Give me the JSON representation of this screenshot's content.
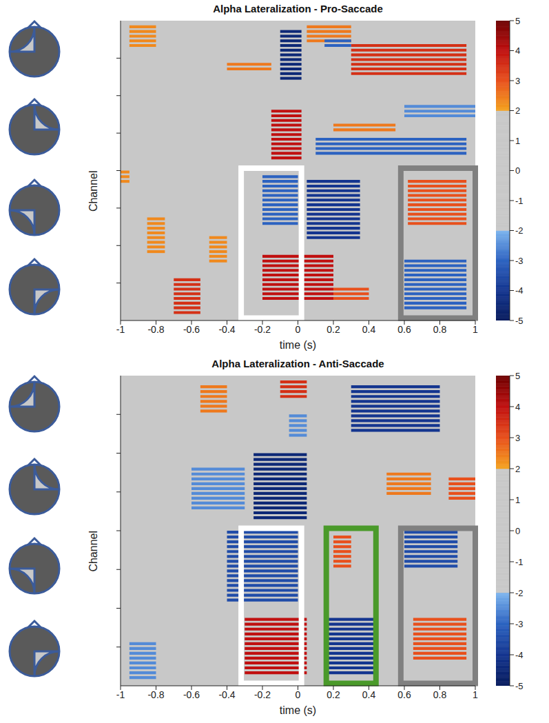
{
  "chart_data": [
    {
      "type": "heatmap",
      "title": "Alpha Lateralization - Pro-Saccade",
      "x_label": "time (s)",
      "y_label": "Channel",
      "xlim": [
        -1,
        1
      ],
      "xticks": [
        -1,
        -0.8,
        -0.6,
        -0.4,
        -0.2,
        0,
        0.2,
        0.4,
        0.6,
        0.8,
        1
      ],
      "ylim": [
        0,
        64
      ],
      "yticks": [
        8,
        16,
        24,
        32,
        40,
        48,
        56
      ],
      "tick_labels": "x",
      "cells": [
        {
          "channels": [
            2,
            13
          ],
          "time": [
            -0.1,
            0.02
          ],
          "value": -4.5
        },
        {
          "channels": [
            5,
            12
          ],
          "time": [
            0.3,
            0.95
          ],
          "value": 3.5
        },
        {
          "channels": [
            1,
            5
          ],
          "time": [
            0.05,
            0.3
          ],
          "value": 2.5
        },
        {
          "channels": [
            1,
            6
          ],
          "time": [
            -0.95,
            -0.8
          ],
          "value": 2.3
        },
        {
          "channels": [
            9,
            11
          ],
          "time": [
            -0.4,
            -0.15
          ],
          "value": 2.5
        },
        {
          "channels": [
            4,
            6
          ],
          "time": [
            0.15,
            0.3
          ],
          "value": -3
        },
        {
          "channels": [
            19,
            30
          ],
          "time": [
            -0.15,
            0.02
          ],
          "value": 4
        },
        {
          "channels": [
            25,
            29
          ],
          "time": [
            0.1,
            0.95
          ],
          "value": -3
        },
        {
          "channels": [
            22,
            24
          ],
          "time": [
            0.2,
            0.55
          ],
          "value": 2.5
        },
        {
          "channels": [
            18,
            21
          ],
          "time": [
            0.6,
            1
          ],
          "value": -2.5
        },
        {
          "channels": [
            32,
            35
          ],
          "time": [
            -1,
            -0.95
          ],
          "value": 2.3
        },
        {
          "channels": [
            33,
            44
          ],
          "time": [
            -0.2,
            0
          ],
          "value": -3
        },
        {
          "channels": [
            34,
            47
          ],
          "time": [
            0.05,
            0.35
          ],
          "value": -4
        },
        {
          "channels": [
            50,
            60
          ],
          "time": [
            -0.2,
            0.2
          ],
          "value": 4
        },
        {
          "channels": [
            57,
            60
          ],
          "time": [
            0.2,
            0.4
          ],
          "value": 3
        },
        {
          "channels": [
            42,
            50
          ],
          "time": [
            -0.85,
            -0.75
          ],
          "value": 2.3
        },
        {
          "channels": [
            46,
            52
          ],
          "time": [
            -0.5,
            -0.4
          ],
          "value": 2.3
        },
        {
          "channels": [
            55,
            63
          ],
          "time": [
            -0.7,
            -0.55
          ],
          "value": 3.5
        },
        {
          "channels": [
            34,
            44
          ],
          "time": [
            0.62,
            0.95
          ],
          "value": 3
        },
        {
          "channels": [
            51,
            62
          ],
          "time": [
            0.6,
            0.95
          ],
          "value": -3
        }
      ],
      "boxes": [
        {
          "time": [
            -0.32,
            0.02
          ],
          "channels": [
            31.5,
            63.5
          ],
          "color": "#ffffff"
        },
        {
          "time": [
            0.58,
            1
          ],
          "channels": [
            31.5,
            63.5
          ],
          "color": "#808080"
        }
      ],
      "colorbar": {
        "range": [
          -5,
          5
        ],
        "ticks": [
          -5,
          -4,
          -3,
          -2,
          -1,
          0,
          1,
          2,
          3,
          4,
          5
        ],
        "colormap": [
          [
            -5,
            "#061a5c"
          ],
          [
            -4,
            "#14358f"
          ],
          [
            -3,
            "#2c62c0"
          ],
          [
            -2,
            "#7cb4ee"
          ],
          [
            -2,
            "#c8c8c8"
          ],
          [
            2,
            "#c8c8c8"
          ],
          [
            2,
            "#f4a21e"
          ],
          [
            3,
            "#e8501c"
          ],
          [
            4,
            "#c01010"
          ],
          [
            5,
            "#6e0000"
          ]
        ]
      }
    },
    {
      "type": "heatmap",
      "title": "Alpha Lateralization - Anti-Saccade",
      "x_label": "time (s)",
      "y_label": "Channel",
      "xlim": [
        -1,
        1
      ],
      "xticks": [
        -1,
        -0.8,
        -0.6,
        -0.4,
        -0.2,
        0,
        0.2,
        0.4,
        0.6,
        0.8,
        1
      ],
      "ylim": [
        0,
        64
      ],
      "yticks": [
        8,
        16,
        24,
        32,
        40,
        48,
        56
      ],
      "tick_labels": "x",
      "cells": [
        {
          "channels": [
            1,
            5
          ],
          "time": [
            -0.1,
            0.05
          ],
          "value": 3.5
        },
        {
          "channels": [
            2,
            8
          ],
          "time": [
            -0.55,
            -0.4
          ],
          "value": 2.5
        },
        {
          "channels": [
            2,
            12
          ],
          "time": [
            0.3,
            0.8
          ],
          "value": -4
        },
        {
          "channels": [
            8,
            13
          ],
          "time": [
            -0.05,
            0.05
          ],
          "value": -2.5
        },
        {
          "channels": [
            16,
            30
          ],
          "time": [
            -0.25,
            0.05
          ],
          "value": -4.5
        },
        {
          "channels": [
            19,
            28
          ],
          "time": [
            -0.6,
            -0.3
          ],
          "value": -2.5
        },
        {
          "channels": [
            20,
            25
          ],
          "time": [
            0.5,
            0.75
          ],
          "value": 2.5
        },
        {
          "channels": [
            21,
            26
          ],
          "time": [
            0.85,
            1
          ],
          "value": 3
        },
        {
          "channels": [
            32,
            47
          ],
          "time": [
            -0.4,
            0
          ],
          "value": -3.5
        },
        {
          "channels": [
            32,
            40
          ],
          "time": [
            0.6,
            0.9
          ],
          "value": -3.5
        },
        {
          "channels": [
            33,
            40
          ],
          "time": [
            0.2,
            0.3
          ],
          "value": 3
        },
        {
          "channels": [
            50,
            62
          ],
          "time": [
            -0.3,
            0.05
          ],
          "value": 4
        },
        {
          "channels": [
            50,
            62
          ],
          "time": [
            0.15,
            0.45
          ],
          "value": -4
        },
        {
          "channels": [
            50,
            59
          ],
          "time": [
            0.65,
            0.95
          ],
          "value": 3
        },
        {
          "channels": [
            55,
            63
          ],
          "time": [
            -0.95,
            -0.8
          ],
          "value": -2.5
        }
      ],
      "boxes": [
        {
          "time": [
            -0.32,
            0.02
          ],
          "channels": [
            31.5,
            63.5
          ],
          "color": "#ffffff"
        },
        {
          "time": [
            0.16,
            0.44
          ],
          "channels": [
            31.5,
            63.5
          ],
          "color": "#4a9a2a"
        },
        {
          "time": [
            0.58,
            1
          ],
          "channels": [
            31.5,
            63.5
          ],
          "color": "#808080"
        }
      ],
      "colorbar": {
        "range": [
          -5,
          5
        ],
        "ticks": [
          -5,
          -4,
          -3,
          -2,
          -1,
          0,
          1,
          2,
          3,
          4,
          5
        ],
        "colormap": [
          [
            -5,
            "#061a5c"
          ],
          [
            -4,
            "#14358f"
          ],
          [
            -3,
            "#2c62c0"
          ],
          [
            -2,
            "#7cb4ee"
          ],
          [
            -2,
            "#c8c8c8"
          ],
          [
            2,
            "#c8c8c8"
          ],
          [
            2,
            "#f4a21e"
          ],
          [
            3,
            "#e8501c"
          ],
          [
            4,
            "#c01010"
          ],
          [
            5,
            "#6e0000"
          ]
        ]
      }
    }
  ]
}
